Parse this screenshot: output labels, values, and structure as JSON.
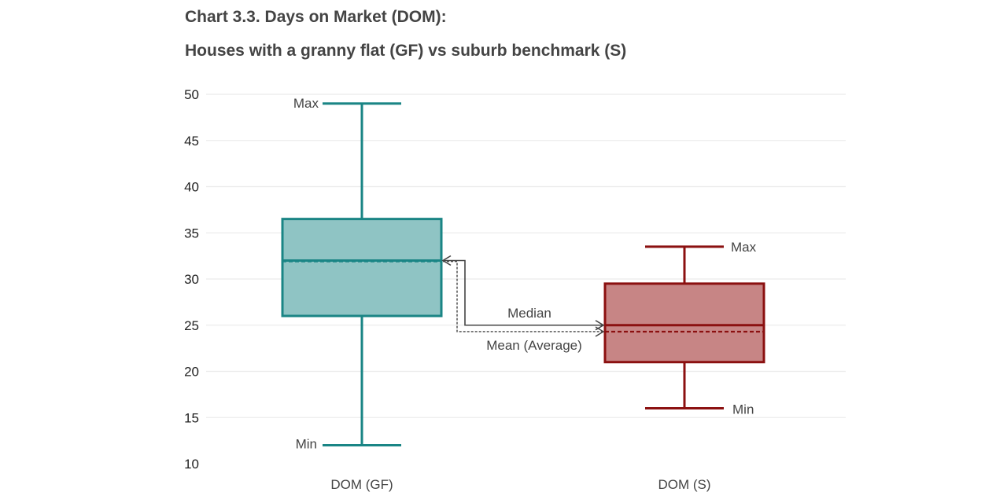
{
  "title_line1": "Chart 3.3. Days on Market (DOM):",
  "title_line2": "Houses with a granny flat (GF) vs suburb benchmark (S)",
  "chart_data": {
    "type": "boxplot",
    "title": "Chart 3.3. Days on Market (DOM): Houses with a granny flat (GF) vs suburb benchmark (S)",
    "ylim": [
      10,
      50
    ],
    "yticks": [
      10,
      15,
      20,
      25,
      30,
      35,
      40,
      45,
      50
    ],
    "grid": true,
    "categories": [
      "DOM (GF)",
      "DOM (S)"
    ],
    "boxes": [
      {
        "category": "DOM (GF)",
        "min": 12,
        "q1": 26,
        "median": 32,
        "mean": 31.9,
        "q3": 36.5,
        "max": 49,
        "color": "#1a8585",
        "fill": "#8fc4c4"
      },
      {
        "category": "DOM (S)",
        "min": 16,
        "q1": 21,
        "median": 25,
        "mean": 24.3,
        "q3": 29.5,
        "max": 33.5,
        "color": "#8b1010",
        "fill": "#c78585"
      }
    ],
    "annotations": {
      "max": "Max",
      "min": "Min",
      "median": "Median",
      "mean": "Mean (Average)"
    }
  }
}
